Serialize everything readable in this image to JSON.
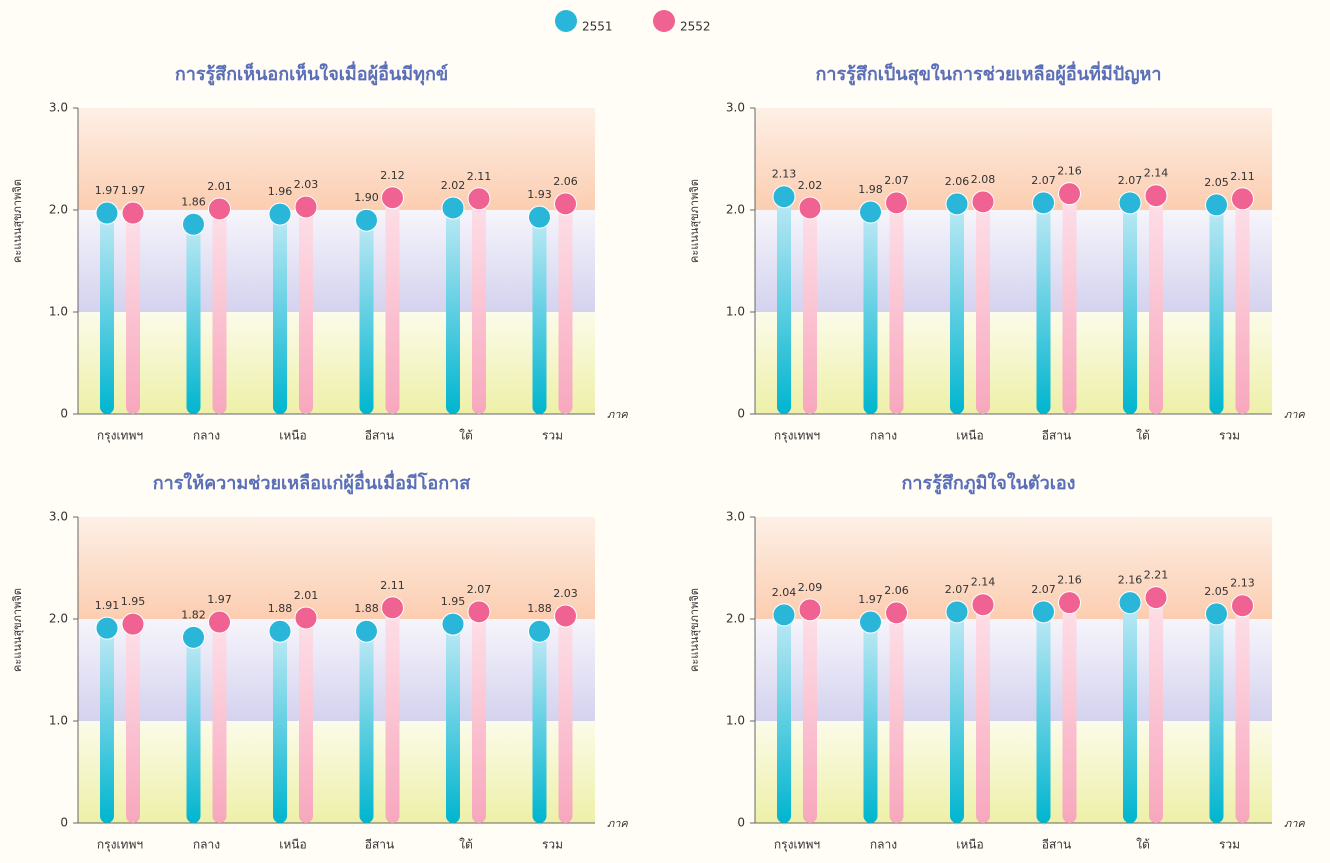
{
  "chart_data": [
    {
      "type": "bar",
      "title": "การรู้สึกเห็นอกเห็นใจเมื่อผู้อื่นมีทุกข์",
      "y_label": "คะแนนสุขภาพจิต",
      "x_label": "ภาค",
      "categories": [
        "กรุงเทพฯ",
        "กลาง",
        "เหนือ",
        "อีสาน",
        "ใต้",
        "รวม"
      ],
      "series": [
        {
          "name": "2551",
          "color": "#29b6d8",
          "values": [
            1.97,
            1.86,
            1.96,
            1.9,
            2.02,
            1.93
          ],
          "value_labels": [
            "1.97",
            "1.86",
            "1.96",
            "1.90",
            "2.02",
            "1.93"
          ]
        },
        {
          "name": "2552",
          "color": "#f06292",
          "values": [
            1.97,
            2.01,
            2.03,
            2.12,
            2.11,
            2.06
          ],
          "value_labels": [
            "1.97",
            "2.01",
            "2.03",
            "2.12",
            "2.11",
            "2.06"
          ]
        }
      ],
      "ylim": [
        0,
        3
      ],
      "yticks": [
        0,
        {
          "value": 1,
          "label": "1.0"
        },
        {
          "value": 2,
          "label": "2.0"
        },
        {
          "value": 3,
          "label": "3.0"
        }
      ]
    },
    {
      "type": "bar",
      "title": "การรู้สึกเป็นสุขในการช่วยเหลือผู้อื่นที่มีปัญหา",
      "y_label": "คะแนนสุขภาพจิต",
      "x_label": "ภาค",
      "categories": [
        "กรุงเทพฯ",
        "กลาง",
        "เหนือ",
        "อีสาน",
        "ใต้",
        "รวม"
      ],
      "series": [
        {
          "name": "2551",
          "color": "#29b6d8",
          "values": [
            2.13,
            1.98,
            2.06,
            2.07,
            2.07,
            2.05
          ]
        },
        {
          "name": "2552",
          "color": "#f06292",
          "values": [
            2.02,
            2.07,
            2.08,
            2.16,
            2.14,
            2.11
          ]
        }
      ],
      "ylim": [
        0,
        3
      ],
      "yticks": [
        0,
        {
          "value": 1,
          "label": "1.0"
        },
        {
          "value": 2,
          "label": "2.0"
        },
        {
          "value": 3,
          "label": "3.0"
        }
      ]
    },
    {
      "type": "bar",
      "title": "การให้ความช่วยเหลือแก่ผู้อื่นเมื่อมีโอกาส",
      "y_label": "คะแนนสุขภาพจิต",
      "x_label": "ภาค",
      "categories": [
        "กรุงเทพฯ",
        "กลาง",
        "เหนือ",
        "อีสาน",
        "ใต้",
        "รวม"
      ],
      "series": [
        {
          "name": "2551",
          "color": "#29b6d8",
          "values": [
            1.91,
            1.82,
            1.88,
            1.88,
            1.95,
            1.88
          ]
        },
        {
          "name": "2552",
          "color": "#f06292",
          "values": [
            1.95,
            1.97,
            2.01,
            2.11,
            2.07,
            2.03
          ]
        }
      ],
      "ylim": [
        0,
        3
      ],
      "yticks": [
        0,
        {
          "value": 1,
          "label": "1.0"
        },
        {
          "value": 2,
          "label": "2.0"
        },
        {
          "value": 3,
          "label": "3.0"
        }
      ]
    },
    {
      "type": "bar",
      "title": "การรู้สึกภูมิใจในตัวเอง",
      "y_label": "คะแนนสุขภาพจิต",
      "x_label": "ภาค",
      "categories": [
        "กรุงเทพฯ",
        "กลาง",
        "เหนือ",
        "อีสาน",
        "ใต้",
        "รวม"
      ],
      "series": [
        {
          "name": "2551",
          "color": "#29b6d8",
          "values": [
            2.04,
            1.97,
            2.07,
            2.07,
            2.16,
            2.05
          ]
        },
        {
          "name": "2552",
          "color": "#f06292",
          "values": [
            2.09,
            2.06,
            2.14,
            2.16,
            2.21,
            2.13
          ]
        }
      ],
      "ylim": [
        0,
        3
      ],
      "yticks": [
        0,
        {
          "value": 1,
          "label": "1.0"
        },
        {
          "value": 2,
          "label": "2.0"
        },
        {
          "value": 3,
          "label": "3.0"
        }
      ]
    }
  ]
}
